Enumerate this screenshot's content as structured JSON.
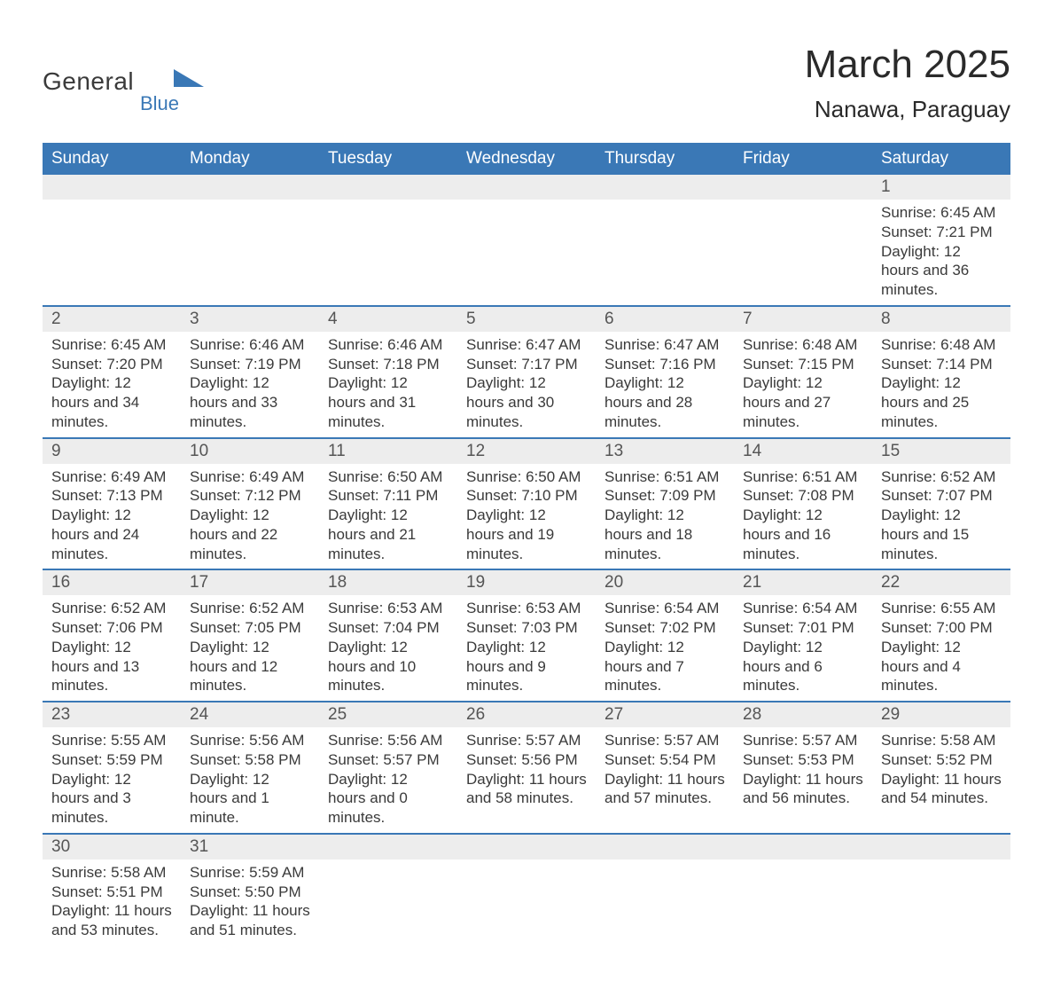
{
  "brand": {
    "line1": "General",
    "line2": "Blue"
  },
  "title": "March 2025",
  "location": "Nanawa, Paraguay",
  "colors": {
    "header_bg": "#3a78b6",
    "header_fg": "#ffffff",
    "daynum_bg": "#ededed",
    "row_divider": "#3a78b6",
    "body_text": "#3a3a3a",
    "page_bg": "#ffffff"
  },
  "typography": {
    "title_fontsize": 44,
    "location_fontsize": 26,
    "header_fontsize": 19,
    "daynum_fontsize": 19,
    "body_fontsize": 17
  },
  "weekdays": [
    "Sunday",
    "Monday",
    "Tuesday",
    "Wednesday",
    "Thursday",
    "Friday",
    "Saturday"
  ],
  "labels": {
    "sunrise": "Sunrise:",
    "sunset": "Sunset:",
    "daylight": "Daylight:"
  },
  "days": [
    {
      "n": 1,
      "sunrise": "6:45 AM",
      "sunset": "7:21 PM",
      "daylight": "12 hours and 36 minutes."
    },
    {
      "n": 2,
      "sunrise": "6:45 AM",
      "sunset": "7:20 PM",
      "daylight": "12 hours and 34 minutes."
    },
    {
      "n": 3,
      "sunrise": "6:46 AM",
      "sunset": "7:19 PM",
      "daylight": "12 hours and 33 minutes."
    },
    {
      "n": 4,
      "sunrise": "6:46 AM",
      "sunset": "7:18 PM",
      "daylight": "12 hours and 31 minutes."
    },
    {
      "n": 5,
      "sunrise": "6:47 AM",
      "sunset": "7:17 PM",
      "daylight": "12 hours and 30 minutes."
    },
    {
      "n": 6,
      "sunrise": "6:47 AM",
      "sunset": "7:16 PM",
      "daylight": "12 hours and 28 minutes."
    },
    {
      "n": 7,
      "sunrise": "6:48 AM",
      "sunset": "7:15 PM",
      "daylight": "12 hours and 27 minutes."
    },
    {
      "n": 8,
      "sunrise": "6:48 AM",
      "sunset": "7:14 PM",
      "daylight": "12 hours and 25 minutes."
    },
    {
      "n": 9,
      "sunrise": "6:49 AM",
      "sunset": "7:13 PM",
      "daylight": "12 hours and 24 minutes."
    },
    {
      "n": 10,
      "sunrise": "6:49 AM",
      "sunset": "7:12 PM",
      "daylight": "12 hours and 22 minutes."
    },
    {
      "n": 11,
      "sunrise": "6:50 AM",
      "sunset": "7:11 PM",
      "daylight": "12 hours and 21 minutes."
    },
    {
      "n": 12,
      "sunrise": "6:50 AM",
      "sunset": "7:10 PM",
      "daylight": "12 hours and 19 minutes."
    },
    {
      "n": 13,
      "sunrise": "6:51 AM",
      "sunset": "7:09 PM",
      "daylight": "12 hours and 18 minutes."
    },
    {
      "n": 14,
      "sunrise": "6:51 AM",
      "sunset": "7:08 PM",
      "daylight": "12 hours and 16 minutes."
    },
    {
      "n": 15,
      "sunrise": "6:52 AM",
      "sunset": "7:07 PM",
      "daylight": "12 hours and 15 minutes."
    },
    {
      "n": 16,
      "sunrise": "6:52 AM",
      "sunset": "7:06 PM",
      "daylight": "12 hours and 13 minutes."
    },
    {
      "n": 17,
      "sunrise": "6:52 AM",
      "sunset": "7:05 PM",
      "daylight": "12 hours and 12 minutes."
    },
    {
      "n": 18,
      "sunrise": "6:53 AM",
      "sunset": "7:04 PM",
      "daylight": "12 hours and 10 minutes."
    },
    {
      "n": 19,
      "sunrise": "6:53 AM",
      "sunset": "7:03 PM",
      "daylight": "12 hours and 9 minutes."
    },
    {
      "n": 20,
      "sunrise": "6:54 AM",
      "sunset": "7:02 PM",
      "daylight": "12 hours and 7 minutes."
    },
    {
      "n": 21,
      "sunrise": "6:54 AM",
      "sunset": "7:01 PM",
      "daylight": "12 hours and 6 minutes."
    },
    {
      "n": 22,
      "sunrise": "6:55 AM",
      "sunset": "7:00 PM",
      "daylight": "12 hours and 4 minutes."
    },
    {
      "n": 23,
      "sunrise": "5:55 AM",
      "sunset": "5:59 PM",
      "daylight": "12 hours and 3 minutes."
    },
    {
      "n": 24,
      "sunrise": "5:56 AM",
      "sunset": "5:58 PM",
      "daylight": "12 hours and 1 minute."
    },
    {
      "n": 25,
      "sunrise": "5:56 AM",
      "sunset": "5:57 PM",
      "daylight": "12 hours and 0 minutes."
    },
    {
      "n": 26,
      "sunrise": "5:57 AM",
      "sunset": "5:56 PM",
      "daylight": "11 hours and 58 minutes."
    },
    {
      "n": 27,
      "sunrise": "5:57 AM",
      "sunset": "5:54 PM",
      "daylight": "11 hours and 57 minutes."
    },
    {
      "n": 28,
      "sunrise": "5:57 AM",
      "sunset": "5:53 PM",
      "daylight": "11 hours and 56 minutes."
    },
    {
      "n": 29,
      "sunrise": "5:58 AM",
      "sunset": "5:52 PM",
      "daylight": "11 hours and 54 minutes."
    },
    {
      "n": 30,
      "sunrise": "5:58 AM",
      "sunset": "5:51 PM",
      "daylight": "11 hours and 53 minutes."
    },
    {
      "n": 31,
      "sunrise": "5:59 AM",
      "sunset": "5:50 PM",
      "daylight": "11 hours and 51 minutes."
    }
  ],
  "grid": [
    [
      null,
      null,
      null,
      null,
      null,
      null,
      1
    ],
    [
      2,
      3,
      4,
      5,
      6,
      7,
      8
    ],
    [
      9,
      10,
      11,
      12,
      13,
      14,
      15
    ],
    [
      16,
      17,
      18,
      19,
      20,
      21,
      22
    ],
    [
      23,
      24,
      25,
      26,
      27,
      28,
      29
    ],
    [
      30,
      31,
      null,
      null,
      null,
      null,
      null
    ]
  ]
}
